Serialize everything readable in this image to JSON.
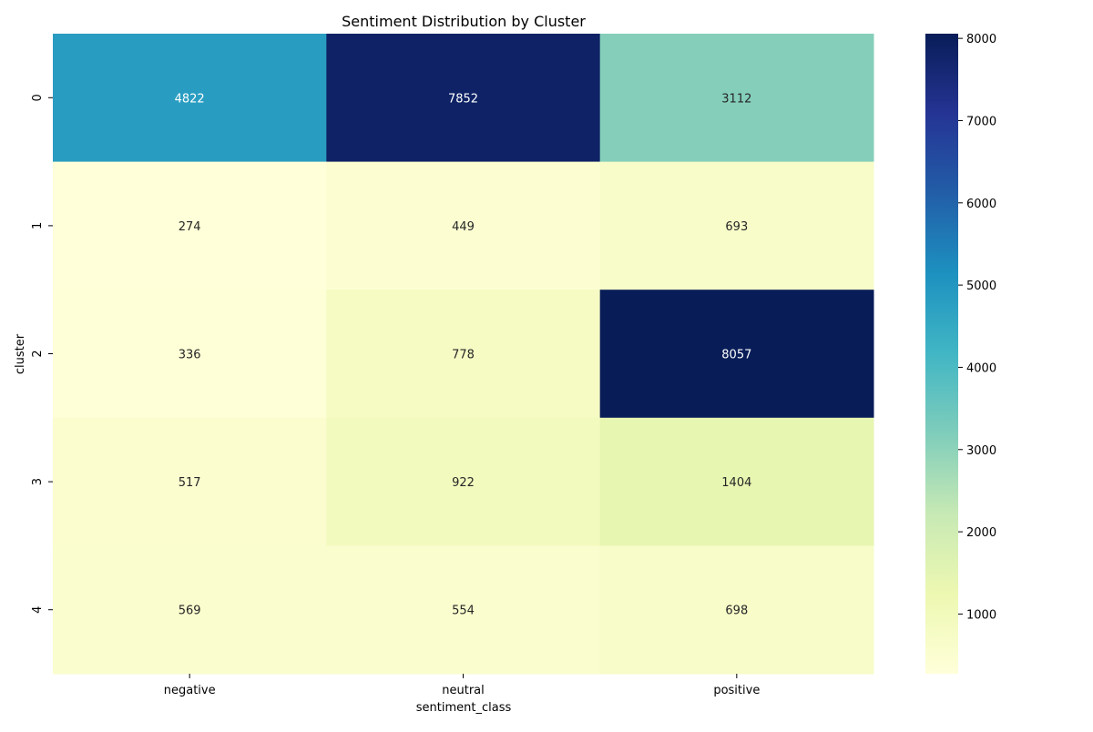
{
  "chart_data": {
    "type": "heatmap",
    "title": "Sentiment Distribution by Cluster",
    "xlabel": "sentiment_class",
    "ylabel": "cluster",
    "x_categories": [
      "negative",
      "neutral",
      "positive"
    ],
    "y_categories": [
      "0",
      "1",
      "2",
      "3",
      "4"
    ],
    "values": [
      [
        4822,
        7852,
        3112
      ],
      [
        274,
        449,
        693
      ],
      [
        336,
        778,
        8057
      ],
      [
        517,
        922,
        1404
      ],
      [
        569,
        554,
        698
      ]
    ],
    "colormap": "YlGnBu",
    "colorbar": {
      "range": [
        274,
        8057
      ],
      "ticks": [
        1000,
        2000,
        3000,
        4000,
        5000,
        6000,
        7000,
        8000
      ]
    },
    "annotations": true
  }
}
